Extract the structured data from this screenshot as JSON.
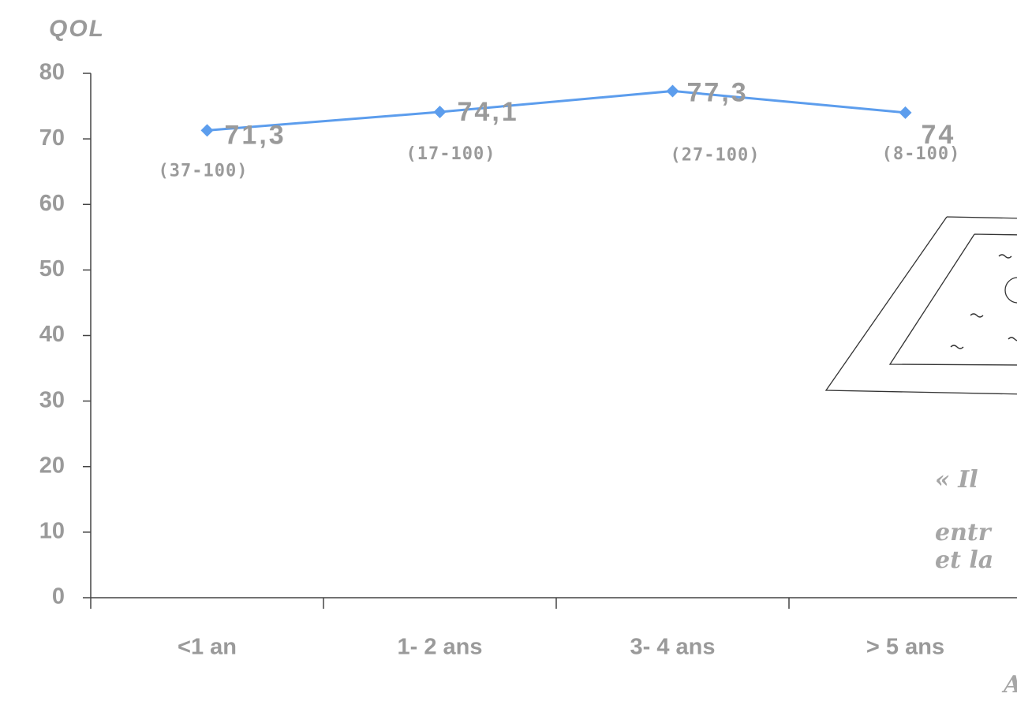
{
  "chart_data": {
    "type": "line",
    "y_label": "QOL",
    "categories": [
      "<1 an",
      "1- 2 ans",
      "3- 4 ans",
      "> 5 ans"
    ],
    "values": [
      71.3,
      74.1,
      77.3,
      74
    ],
    "value_labels": [
      "71,3",
      "74,1",
      "77,3",
      "74"
    ],
    "ranges": [
      "(37-100)",
      "(17-100)",
      "(27-100)",
      "(8-100)"
    ],
    "color": "#5c9ded",
    "ylim": [
      0,
      80
    ],
    "yticks": [
      0,
      10,
      20,
      30,
      40,
      50,
      60,
      70,
      80
    ],
    "notes": [
      "« Il",
      "entr",
      "et la",
      "A"
    ]
  }
}
